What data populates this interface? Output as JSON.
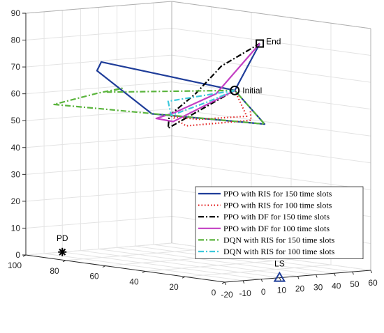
{
  "chart_data": {
    "type": "line",
    "title": "",
    "xlabel": "",
    "ylabel": "",
    "zlabel": "",
    "xlim": [
      -20,
      60
    ],
    "ylim": [
      0,
      100
    ],
    "zlim": [
      0,
      90
    ],
    "x_ticks": [
      -20,
      -10,
      0,
      10,
      20,
      30,
      40,
      50,
      60
    ],
    "y_ticks": [
      0,
      20,
      40,
      60,
      80,
      100
    ],
    "z_ticks": [
      0,
      10,
      20,
      30,
      40,
      50,
      60,
      70,
      80,
      90
    ],
    "grid": true,
    "legend_position": "inside-right",
    "series": [
      {
        "name": "PPO with RIS for 150 time slots",
        "color": "#1f3d99",
        "dash": "solid",
        "points": [
          [
            40,
            50,
            63
          ],
          [
            40,
            35,
            52
          ],
          [
            0,
            55,
            56
          ],
          [
            -5,
            78,
            70
          ],
          [
            5,
            85,
            72
          ],
          [
            40,
            50,
            63
          ],
          [
            45,
            42,
            81
          ]
        ]
      },
      {
        "name": "PPO with RIS for 100 time slots",
        "color": "#e32222",
        "dash": "dotted",
        "points": [
          [
            40,
            50,
            63
          ],
          [
            40,
            44,
            54
          ],
          [
            22,
            52,
            53
          ],
          [
            14,
            58,
            54
          ],
          [
            22,
            58,
            50
          ],
          [
            38,
            40,
            53
          ],
          [
            42,
            44,
            56
          ]
        ]
      },
      {
        "name": "PPO with DF for 150 time slots",
        "color": "#000000",
        "dash": "dashdot",
        "points": [
          [
            40,
            50,
            63
          ],
          [
            10,
            56,
            50
          ],
          [
            15,
            60,
            54
          ],
          [
            25,
            56,
            62
          ],
          [
            36,
            53,
            72
          ],
          [
            45,
            42,
            81
          ]
        ]
      },
      {
        "name": "PPO with DF for 100 time slots",
        "color": "#c33fc3",
        "dash": "solid",
        "points": [
          [
            40,
            50,
            63
          ],
          [
            15,
            58,
            52
          ],
          [
            10,
            62,
            53
          ],
          [
            18,
            60,
            55
          ],
          [
            32,
            52,
            62
          ],
          [
            45,
            42,
            81
          ]
        ]
      },
      {
        "name": "DQN with RIS for 150 time slots",
        "color": "#5ab43c",
        "dash": "dashdot",
        "points": [
          [
            40,
            50,
            63
          ],
          [
            -8,
            70,
            63
          ],
          [
            0,
            70,
            64
          ],
          [
            0,
            82,
            61
          ],
          [
            -10,
            95,
            56
          ],
          [
            40,
            35,
            52
          ],
          [
            40,
            50,
            63
          ]
        ]
      },
      {
        "name": "DQN with RIS for 100 time slots",
        "color": "#3cc8dc",
        "dash": "dashdot",
        "points": [
          [
            40,
            50,
            63
          ],
          [
            10,
            56,
            60
          ],
          [
            16,
            60,
            54
          ],
          [
            30,
            54,
            59
          ],
          [
            40,
            50,
            63
          ]
        ]
      }
    ],
    "annotations": [
      {
        "label": "End",
        "marker": "square",
        "point": [
          45,
          42,
          81
        ]
      },
      {
        "label": "Initial",
        "marker": "circle",
        "point": [
          40,
          50,
          63
        ]
      },
      {
        "label": "PD",
        "marker": "asterisk",
        "point": [
          0,
          100,
          0
        ]
      },
      {
        "label": "LS",
        "marker": "triangle",
        "point": [
          10,
          0,
          0
        ],
        "color": "#1f3d99"
      }
    ]
  }
}
